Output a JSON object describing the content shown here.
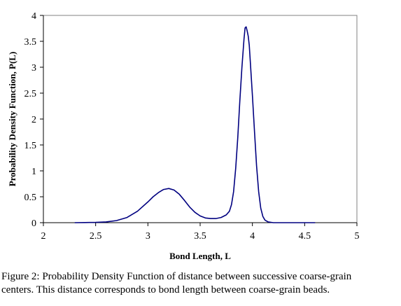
{
  "chart_data": {
    "type": "line",
    "title": "",
    "xlabel": "Bond Length, L",
    "ylabel": "Probability Density Function, P(L)",
    "xlim": [
      2,
      5
    ],
    "ylim": [
      0,
      4
    ],
    "xticks": [
      "2",
      "2.5",
      "3",
      "3.5",
      "4",
      "4.5",
      "5"
    ],
    "yticks": [
      "0",
      "0.5",
      "1",
      "1.5",
      "2",
      "2.5",
      "3",
      "3.5",
      "4"
    ],
    "grid": false,
    "legend": "none",
    "line_color": "#000080",
    "series": [
      {
        "x": [
          2.3,
          2.4,
          2.5,
          2.6,
          2.7,
          2.8,
          2.9,
          3.0,
          3.05,
          3.1,
          3.15,
          3.2,
          3.25,
          3.3,
          3.35,
          3.4,
          3.45,
          3.5,
          3.55,
          3.6,
          3.65,
          3.7,
          3.75,
          3.78,
          3.8,
          3.82,
          3.84,
          3.86,
          3.88,
          3.9,
          3.92,
          3.93,
          3.94,
          3.95,
          3.96,
          3.97,
          3.98,
          4.0,
          4.02,
          4.04,
          4.06,
          4.08,
          4.1,
          4.12,
          4.15,
          4.2,
          4.3,
          4.5,
          4.6
        ],
        "y": [
          0.0,
          0.003,
          0.006,
          0.015,
          0.04,
          0.1,
          0.22,
          0.4,
          0.5,
          0.58,
          0.64,
          0.66,
          0.63,
          0.55,
          0.43,
          0.3,
          0.2,
          0.13,
          0.09,
          0.08,
          0.08,
          0.1,
          0.15,
          0.22,
          0.35,
          0.6,
          1.05,
          1.65,
          2.35,
          3.0,
          3.55,
          3.76,
          3.78,
          3.7,
          3.6,
          3.42,
          3.1,
          2.45,
          1.75,
          1.1,
          0.6,
          0.28,
          0.12,
          0.05,
          0.015,
          0.0,
          0.0,
          0.0,
          0.0
        ]
      }
    ]
  },
  "caption": {
    "line1": "Figure 2: Probability Density Function of distance between successive coarse-grain",
    "line2": "centers. This distance corresponds to bond length between coarse-grain beads."
  }
}
